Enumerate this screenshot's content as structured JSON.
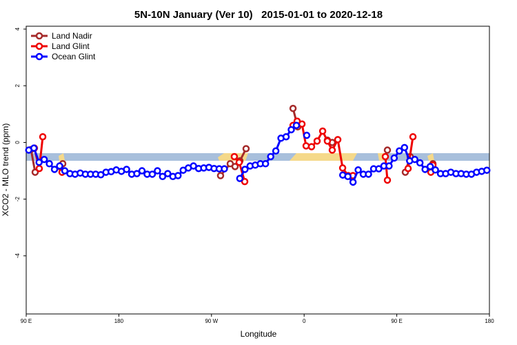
{
  "chart_data": {
    "type": "line",
    "title": "5N-10N January (Ver 10)   2015-01-01 to 2020-12-18",
    "x_label": "Longitude",
    "y_label": "XCO2 - MLO trend (ppm)",
    "xlim": [
      90,
      540
    ],
    "ylim": [
      -6.05,
      4.1
    ],
    "xticks": [
      {
        "value": 90,
        "label": "90 E"
      },
      {
        "value": 180,
        "label": "180"
      },
      {
        "value": 270,
        "label": "90 W"
      },
      {
        "value": 360,
        "label": "0"
      },
      {
        "value": 450,
        "label": "90 E"
      },
      {
        "value": 540,
        "label": "180"
      }
    ],
    "yticks": [
      -4,
      -2,
      0,
      2,
      4
    ],
    "legend": "top-left",
    "series": [
      {
        "name": "Land Nadir",
        "color": "#a52a2a",
        "x": [
          94.7,
          98.7,
          null,
          122.8,
          125.5,
          null,
          278.8,
          288.2,
          292.9,
          297.6,
          303.6,
          null,
          349.2,
          353.8,
          null,
          382.6,
          387.3,
          null,
          440.9,
          null,
          458.3,
          463,
          null,
          485.1
        ],
        "values": [
          -0.25,
          -1.05,
          null,
          -0.85,
          -0.75,
          null,
          -1.17,
          -0.75,
          -0.85,
          -0.65,
          -0.22,
          null,
          1.2,
          0.55,
          null,
          0.08,
          0.0,
          null,
          -0.27,
          null,
          -1.05,
          -0.5,
          null,
          -0.75
        ]
      },
      {
        "name": "Land Glint",
        "color": "#ee0000",
        "x": [
          98,
          102.7,
          106.1,
          null,
          122.8,
          124.8,
          null,
          292.2,
          296.9,
          302.3,
          null,
          349.2,
          353.2,
          357.9,
          361.9,
          367.2,
          372.6,
          378,
          382.6,
          387.3,
          392.7,
          397.4,
          402.7,
          407.4,
          null,
          438.9,
          440.9,
          null,
          461,
          465.7,
          null,
          483.1,
          485.1
        ],
        "values": [
          -0.2,
          -0.92,
          0.2,
          null,
          -0.85,
          -1.05,
          null,
          -0.5,
          -0.7,
          -1.38,
          null,
          0.6,
          0.75,
          0.65,
          -0.12,
          -0.15,
          0.05,
          0.4,
          0.05,
          -0.27,
          0.1,
          -0.9,
          -1.17,
          -1.17,
          null,
          -0.5,
          -1.33,
          null,
          -0.92,
          0.2,
          null,
          -1.05,
          -0.8
        ]
      },
      {
        "name": "Ocean Glint",
        "color": "#0000ff",
        "x": [
          92.5,
          97.5,
          102.5,
          107.5,
          112.5,
          117.5,
          122.5,
          127.5,
          132.5,
          137.5,
          142.5,
          147.5,
          152.5,
          157.5,
          162.5,
          167.5,
          172.5,
          177.5,
          182.5,
          187.5,
          192.5,
          197.5,
          202.5,
          207.5,
          212.5,
          217.5,
          222.5,
          227.5,
          232.5,
          237.5,
          242.5,
          247.5,
          252.5,
          257.5,
          262.5,
          267.5,
          272.5,
          277.5,
          282.5,
          287.5,
          292.5,
          297.5,
          302.5,
          307.5,
          312.5,
          317.5,
          322.5,
          327.5,
          332.5,
          337.5,
          342.5,
          347.5,
          352.5,
          357.5,
          362.5,
          367.5,
          372.5,
          377.5,
          382.5,
          387.5,
          392.5,
          397.5,
          402.5,
          407.5,
          412.5,
          417.5,
          422.5,
          427.5,
          432.5,
          437.5,
          442.5,
          447.5,
          452.5,
          457.5,
          462.5,
          467.5,
          472.5,
          477.5,
          482.5,
          487.5,
          492.5,
          497.5,
          502.5,
          507.5,
          512.5,
          517.5,
          522.5,
          527.5,
          532.5,
          537.5
        ],
        "values": [
          -0.27,
          -0.2,
          -0.7,
          -0.6,
          -0.75,
          -0.95,
          -0.83,
          -1.0,
          -1.1,
          -1.12,
          -1.08,
          -1.12,
          -1.12,
          -1.12,
          -1.14,
          -1.05,
          -1.03,
          -0.97,
          -1.02,
          -0.95,
          -1.12,
          -1.1,
          -1.0,
          -1.12,
          -1.12,
          -1.0,
          -1.2,
          -1.1,
          -1.2,
          -1.17,
          -0.98,
          -0.9,
          -0.83,
          -0.92,
          -0.9,
          -0.88,
          -0.92,
          -0.93,
          -0.93,
          null,
          null,
          -1.27,
          -0.95,
          -0.83,
          -0.8,
          -0.75,
          -0.75,
          -0.5,
          -0.3,
          0.15,
          0.2,
          0.45,
          0.6,
          null,
          0.25,
          null,
          null,
          null,
          null,
          null,
          null,
          -1.15,
          -1.2,
          -1.4,
          -0.97,
          -1.12,
          -1.12,
          -0.93,
          -0.93,
          -0.83,
          -0.83,
          -0.55,
          -0.3,
          -0.18,
          -0.65,
          -0.6,
          -0.72,
          -0.95,
          -0.85,
          -0.97,
          -1.1,
          -1.1,
          -1.05,
          -1.1,
          -1.1,
          -1.12,
          -1.12,
          -1.05,
          -1.02,
          -0.98
        ]
      }
    ]
  }
}
